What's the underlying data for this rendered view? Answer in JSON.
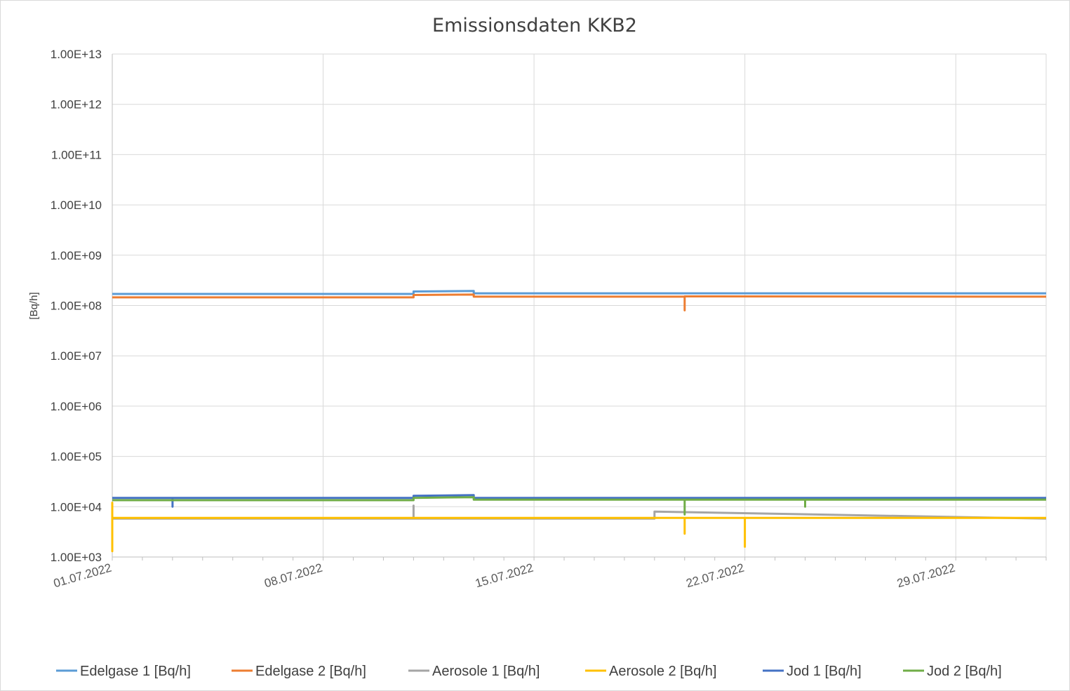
{
  "chart_data": {
    "type": "line",
    "title": "Emissionsdaten KKB2",
    "xlabel": "",
    "ylabel": "[Bq/h]",
    "yscale": "log",
    "ylim": [
      1000,
      10000000000000
    ],
    "yticks": [
      1000,
      10000,
      100000,
      1000000,
      10000000,
      100000000,
      1000000000,
      10000000000,
      100000000000,
      1000000000000,
      10000000000000
    ],
    "ytick_labels": [
      "1.00E+03",
      "1.00E+04",
      "1.00E+05",
      "1.00E+06",
      "1.00E+07",
      "1.00E+08",
      "1.00E+09",
      "1.00E+10",
      "1.00E+11",
      "1.00E+12",
      "1.00E+13"
    ],
    "xlim": [
      "01.07.2022",
      "01.08.2022"
    ],
    "xtick_labels": [
      "01.07.2022",
      "08.07.2022",
      "15.07.2022",
      "22.07.2022",
      "29.07.2022"
    ],
    "grid": true,
    "legend_position": "bottom",
    "series": [
      {
        "name": "Edelgase 1 [Bq/h]",
        "color": "#5B9BD5",
        "x": [
          "01.07.2022",
          "11.07.2022",
          "11.07.2022",
          "13.07.2022",
          "13.07.2022",
          "01.08.2022"
        ],
        "y": [
          170000000,
          170000000,
          190000000,
          195000000,
          175000000,
          175000000
        ]
      },
      {
        "name": "Edelgase 2 [Bq/h]",
        "color": "#ED7D31",
        "x": [
          "01.07.2022",
          "11.07.2022",
          "11.07.2022",
          "13.07.2022",
          "13.07.2022",
          "20.07.2022",
          "20.07.2022",
          "20.07.2022",
          "01.08.2022"
        ],
        "y": [
          145000000,
          145000000,
          162000000,
          165000000,
          150000000,
          150000000,
          80000000,
          152000000,
          150000000
        ]
      },
      {
        "name": "Aerosole 1 [Bq/h]",
        "color": "#A5A5A5",
        "x": [
          "01.07.2022",
          "11.07.2022",
          "11.07.2022",
          "11.07.2022",
          "19.07.2022",
          "19.07.2022",
          "01.08.2022"
        ],
        "y": [
          5800,
          5800,
          10500,
          5800,
          5800,
          8000,
          5800
        ]
      },
      {
        "name": "Aerosole 2 [Bq/h]",
        "color": "#FFC000",
        "x": [
          "01.07.2022",
          "01.07.2022",
          "01.07.2022",
          "01.07.2022",
          "20.07.2022",
          "20.07.2022",
          "20.07.2022",
          "22.07.2022",
          "22.07.2022",
          "22.07.2022",
          "01.08.2022"
        ],
        "y": [
          6000,
          12000,
          1300,
          6000,
          6000,
          2900,
          6000,
          6000,
          1600,
          6000,
          6000
        ]
      },
      {
        "name": "Jod 1 [Bq/h]",
        "color": "#4472C4",
        "x": [
          "01.07.2022",
          "03.07.2022",
          "03.07.2022",
          "03.07.2022",
          "11.07.2022",
          "11.07.2022",
          "13.07.2022",
          "13.07.2022",
          "01.08.2022"
        ],
        "y": [
          15000,
          15000,
          10000,
          15000,
          15000,
          16500,
          17000,
          15000,
          15000
        ]
      },
      {
        "name": "Jod 2 [Bq/h]",
        "color": "#70AD47",
        "x": [
          "01.07.2022",
          "11.07.2022",
          "11.07.2022",
          "13.07.2022",
          "13.07.2022",
          "20.07.2022",
          "20.07.2022",
          "20.07.2022",
          "24.07.2022",
          "24.07.2022",
          "24.07.2022",
          "01.08.2022"
        ],
        "y": [
          13500,
          13500,
          15000,
          15500,
          13800,
          13800,
          7000,
          13800,
          13800,
          10000,
          13800,
          13800
        ]
      }
    ]
  }
}
